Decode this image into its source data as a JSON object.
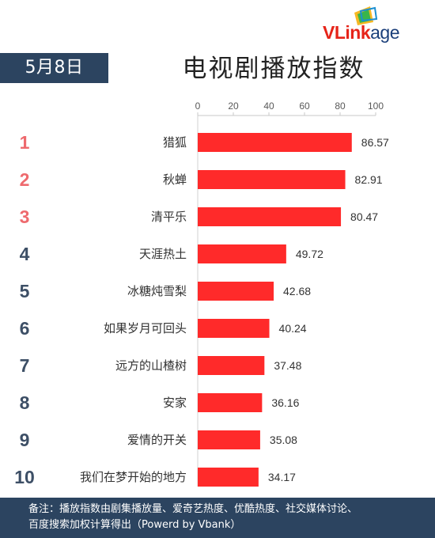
{
  "logo": {
    "v": "V",
    "link": "Link",
    "age": "age"
  },
  "date": "5月8日",
  "title": "电视剧播放指数",
  "chart_data": {
    "type": "bar",
    "orientation": "horizontal",
    "title": "电视剧播放指数",
    "ranks": [
      "1",
      "2",
      "3",
      "4",
      "5",
      "6",
      "7",
      "8",
      "9",
      "10"
    ],
    "categories": [
      "猎狐",
      "秋蝉",
      "清平乐",
      "天涯热土",
      "冰糖炖雪梨",
      "如果岁月可回头",
      "远方的山楂树",
      "安家",
      "爱情的开关",
      "我们在梦开始的地方"
    ],
    "values": [
      86.57,
      82.91,
      80.47,
      49.72,
      42.68,
      40.24,
      37.48,
      36.16,
      35.08,
      34.17
    ],
    "xlim": [
      0,
      100
    ],
    "xticks": [
      0,
      20,
      40,
      60,
      80,
      100
    ],
    "axis_position": "top",
    "bar_color": "#ff2a2a",
    "rank_colors": {
      "top3": "#ee6a6e",
      "rest": "#3d4f66"
    },
    "grid": false,
    "legend": "none"
  },
  "footer": {
    "line1": "备注：播放指数由剧集播放量、爱奇艺热度、优酷热度、社交媒体讨论、",
    "line2": "百度搜索加权计算得出（Powerd by Vbank）"
  }
}
